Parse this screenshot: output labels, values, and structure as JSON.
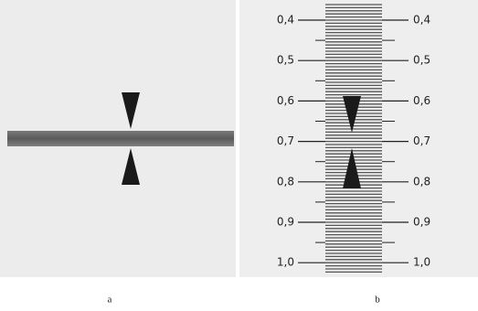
{
  "figure": {
    "panels": [
      {
        "label": "a"
      },
      {
        "label": "b",
        "scale_labels": [
          "0,4",
          "0,5",
          "0,6",
          "0,7",
          "0,8",
          "0,9",
          "1,0"
        ]
      }
    ]
  }
}
